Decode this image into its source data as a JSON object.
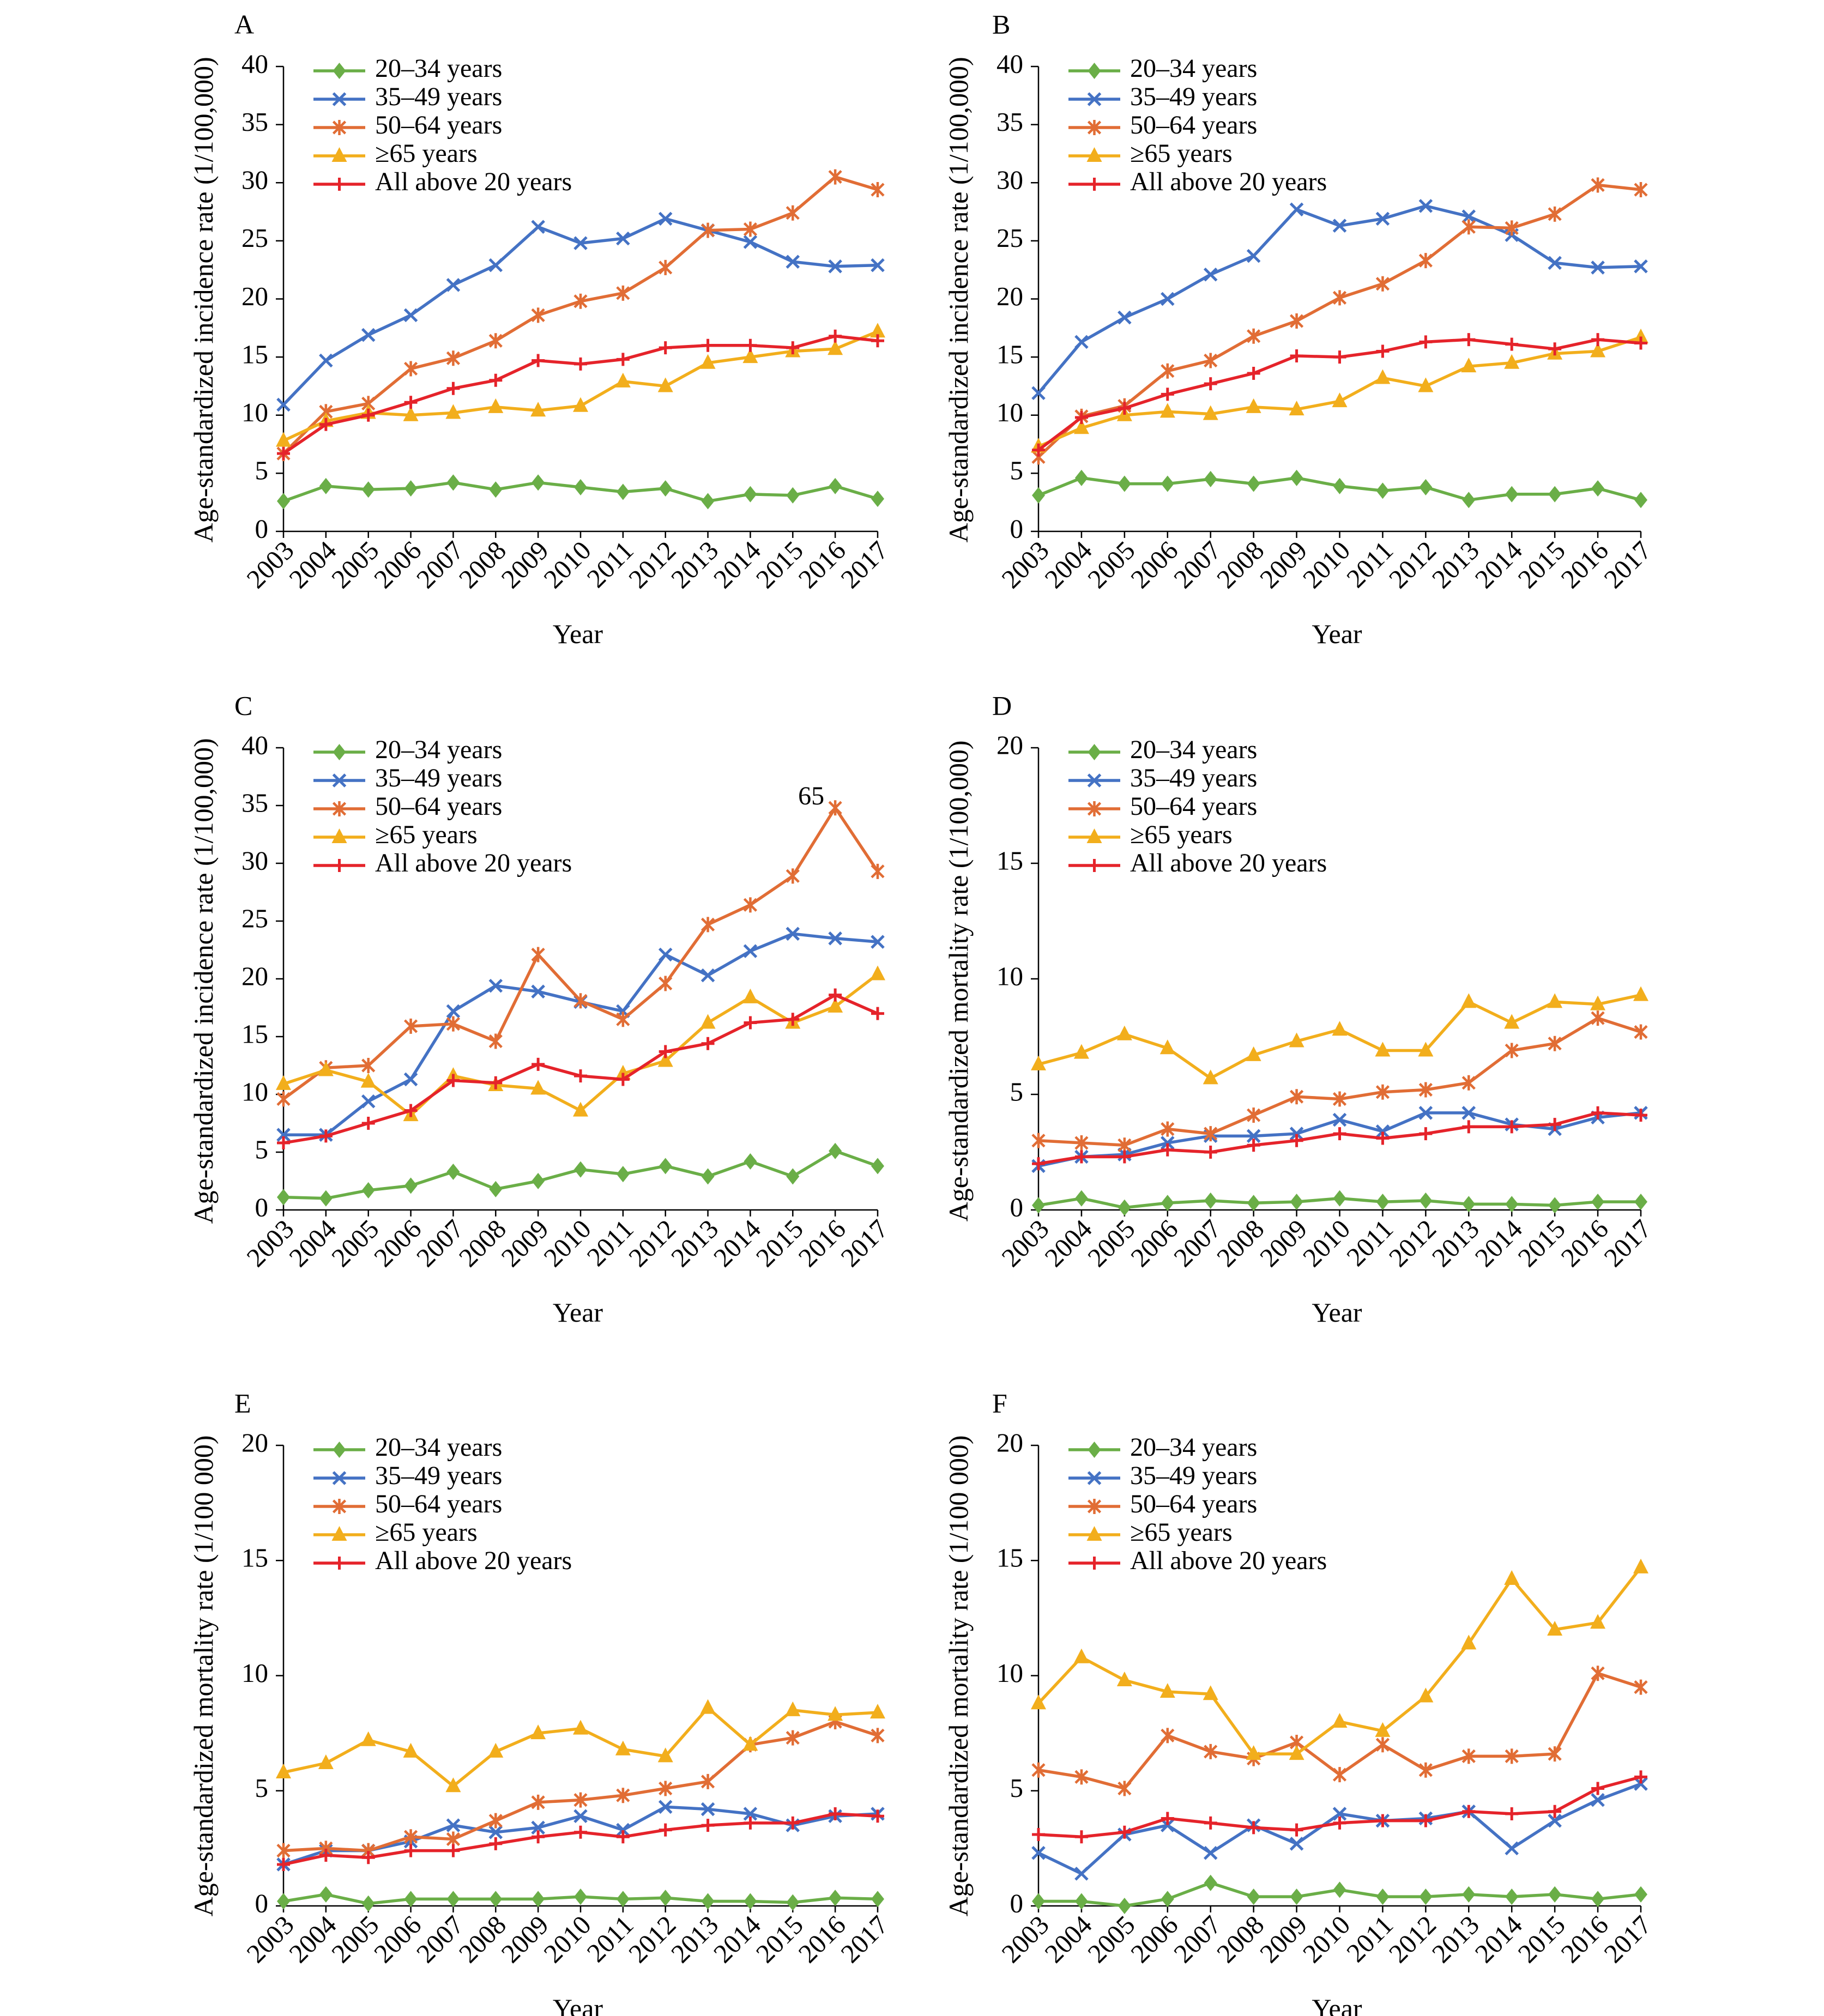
{
  "figure": {
    "series_styles": [
      {
        "name": "20–34 years",
        "color": "#6AAE47",
        "marker": "diamond"
      },
      {
        "name": "35–49 years",
        "color": "#4472C4",
        "marker": "x"
      },
      {
        "name": "50–64 years",
        "color": "#E16D35",
        "marker": "star"
      },
      {
        "name": "≥65 years",
        "color": "#F2AE1C",
        "marker": "triangle"
      },
      {
        "name": "All above 20 years",
        "color": "#E5232A",
        "marker": "plus"
      }
    ]
  },
  "chart_data": [
    {
      "panel": "A",
      "type": "line",
      "xlabel": "Year",
      "ylabel": "Age-standardized incidence rate (1/100,000)",
      "ylim": [
        0,
        40
      ],
      "yticks": [
        0,
        5,
        10,
        15,
        20,
        25,
        30,
        35,
        40
      ],
      "legend": "top-left",
      "grid": false,
      "x": [
        "2003",
        "2004",
        "2005",
        "2006",
        "2007",
        "2008",
        "2009",
        "2010",
        "2011",
        "2012",
        "2013",
        "2014",
        "2015",
        "2016",
        "2017"
      ],
      "series": [
        {
          "name": "20–34 years",
          "values": [
            2.6,
            3.9,
            3.6,
            3.7,
            4.2,
            3.6,
            4.2,
            3.8,
            3.4,
            3.7,
            2.6,
            3.2,
            3.1,
            3.9,
            2.8
          ]
        },
        {
          "name": "35–49 years",
          "values": [
            10.9,
            14.7,
            16.9,
            18.6,
            21.2,
            22.9,
            26.2,
            24.8,
            25.2,
            26.9,
            25.9,
            24.9,
            23.2,
            22.8,
            22.9
          ]
        },
        {
          "name": "50–64 years",
          "values": [
            6.7,
            10.3,
            11.0,
            14.0,
            14.9,
            16.4,
            18.6,
            19.8,
            20.5,
            22.7,
            25.9,
            26.0,
            27.4,
            30.5,
            29.4
          ]
        },
        {
          "name": "≥65 years",
          "values": [
            7.8,
            9.5,
            10.2,
            10.0,
            10.2,
            10.7,
            10.4,
            10.8,
            12.9,
            12.5,
            14.5,
            15.0,
            15.5,
            15.7,
            17.2
          ]
        },
        {
          "name": "All above 20 years",
          "values": [
            6.7,
            9.2,
            10.0,
            11.1,
            12.3,
            13.0,
            14.7,
            14.4,
            14.8,
            15.8,
            16.0,
            16.0,
            15.8,
            16.8,
            16.4
          ]
        }
      ]
    },
    {
      "panel": "B",
      "type": "line",
      "xlabel": "Year",
      "ylabel": "Age-standardized incidence rate (1/100,000)",
      "ylim": [
        0,
        40
      ],
      "yticks": [
        0,
        5,
        10,
        15,
        20,
        25,
        30,
        35,
        40
      ],
      "legend": "top-left",
      "grid": false,
      "x": [
        "2003",
        "2004",
        "2005",
        "2006",
        "2007",
        "2008",
        "2009",
        "2010",
        "2011",
        "2012",
        "2013",
        "2014",
        "2015",
        "2016",
        "2017"
      ],
      "series": [
        {
          "name": "20–34 years",
          "values": [
            3.1,
            4.6,
            4.1,
            4.1,
            4.5,
            4.1,
            4.6,
            3.9,
            3.5,
            3.8,
            2.7,
            3.2,
            3.2,
            3.7,
            2.7
          ]
        },
        {
          "name": "35–49 years",
          "values": [
            11.9,
            16.3,
            18.4,
            20.0,
            22.1,
            23.7,
            27.7,
            26.3,
            26.9,
            28.0,
            27.1,
            25.5,
            23.1,
            22.7,
            22.8
          ]
        },
        {
          "name": "50–64 years",
          "values": [
            6.4,
            9.9,
            10.8,
            13.8,
            14.7,
            16.8,
            18.1,
            20.1,
            21.3,
            23.3,
            26.2,
            26.1,
            27.3,
            29.8,
            29.4
          ]
        },
        {
          "name": "≥65 years",
          "values": [
            7.3,
            8.9,
            10.0,
            10.3,
            10.1,
            10.7,
            10.5,
            11.2,
            13.2,
            12.5,
            14.2,
            14.5,
            15.3,
            15.5,
            16.7
          ]
        },
        {
          "name": "All above 20 years",
          "values": [
            7.0,
            9.8,
            10.6,
            11.8,
            12.7,
            13.6,
            15.1,
            15.0,
            15.5,
            16.3,
            16.5,
            16.1,
            15.7,
            16.5,
            16.2
          ]
        }
      ]
    },
    {
      "panel": "C",
      "type": "line",
      "xlabel": "Year",
      "ylabel": "Age-standardized incidence rate (1/100,000)",
      "ylim": [
        0,
        40
      ],
      "yticks": [
        0,
        5,
        10,
        15,
        20,
        25,
        30,
        35,
        40
      ],
      "legend": "top-left",
      "grid": false,
      "annotations": [
        {
          "text": "65",
          "series": "50–64 years",
          "x": "2016"
        }
      ],
      "x": [
        "2003",
        "2004",
        "2005",
        "2006",
        "2007",
        "2008",
        "2009",
        "2010",
        "2011",
        "2012",
        "2013",
        "2014",
        "2015",
        "2016",
        "2017"
      ],
      "series": [
        {
          "name": "20–34 years",
          "values": [
            1.1,
            1.0,
            1.7,
            2.1,
            3.3,
            1.8,
            2.5,
            3.5,
            3.1,
            3.8,
            2.9,
            4.2,
            2.9,
            5.1,
            3.8
          ]
        },
        {
          "name": "35–49 years",
          "values": [
            6.5,
            6.5,
            9.4,
            11.3,
            17.2,
            19.4,
            18.9,
            18.0,
            17.2,
            22.1,
            20.3,
            22.4,
            23.9,
            23.5,
            23.2
          ]
        },
        {
          "name": "50–64 years",
          "values": [
            9.6,
            12.3,
            12.5,
            15.9,
            16.1,
            14.6,
            22.1,
            18.1,
            16.5,
            19.6,
            24.7,
            26.4,
            28.9,
            34.8,
            29.3
          ]
        },
        {
          "name": "≥65 years",
          "values": [
            10.9,
            12.1,
            11.1,
            8.2,
            11.6,
            10.8,
            10.5,
            8.6,
            11.8,
            12.9,
            16.2,
            18.4,
            16.2,
            17.6,
            20.4
          ]
        },
        {
          "name": "All above 20 years",
          "values": [
            5.8,
            6.4,
            7.5,
            8.6,
            11.2,
            11.0,
            12.6,
            11.6,
            11.3,
            13.7,
            14.4,
            16.2,
            16.5,
            18.6,
            17.0
          ]
        }
      ]
    },
    {
      "panel": "D",
      "type": "line",
      "xlabel": "Year",
      "ylabel": "Age-standardized mortality rate (1/100,000)",
      "ylim": [
        0,
        20
      ],
      "yticks": [
        0,
        5,
        10,
        15,
        20
      ],
      "legend": "top-left",
      "grid": false,
      "x": [
        "2003",
        "2004",
        "2005",
        "2006",
        "2007",
        "2008",
        "2009",
        "2010",
        "2011",
        "2012",
        "2013",
        "2014",
        "2015",
        "2016",
        "2017"
      ],
      "series": [
        {
          "name": "20–34 years",
          "values": [
            0.2,
            0.5,
            0.1,
            0.3,
            0.4,
            0.3,
            0.35,
            0.5,
            0.35,
            0.4,
            0.25,
            0.25,
            0.2,
            0.35,
            0.35
          ]
        },
        {
          "name": "35–49 years",
          "values": [
            1.9,
            2.3,
            2.4,
            2.9,
            3.2,
            3.2,
            3.3,
            3.9,
            3.4,
            4.2,
            4.2,
            3.7,
            3.5,
            4.0,
            4.2
          ]
        },
        {
          "name": "50–64 years",
          "values": [
            3.0,
            2.9,
            2.8,
            3.5,
            3.3,
            4.1,
            4.9,
            4.8,
            5.1,
            5.2,
            5.5,
            6.9,
            7.2,
            8.3,
            7.7
          ]
        },
        {
          "name": "≥65 years",
          "values": [
            6.3,
            6.8,
            7.6,
            7.0,
            5.7,
            6.7,
            7.3,
            7.8,
            6.9,
            6.9,
            9.0,
            8.1,
            9.0,
            8.9,
            9.3
          ]
        },
        {
          "name": "All above 20 years",
          "values": [
            2.0,
            2.3,
            2.3,
            2.6,
            2.5,
            2.8,
            3.0,
            3.3,
            3.1,
            3.3,
            3.6,
            3.6,
            3.7,
            4.2,
            4.1
          ]
        }
      ]
    },
    {
      "panel": "E",
      "type": "line",
      "xlabel": "Year",
      "ylabel": "Age-standardized mortality rate (1/100 000)",
      "ylim": [
        0,
        20
      ],
      "yticks": [
        0,
        5,
        10,
        15,
        20
      ],
      "legend": "top-left",
      "grid": false,
      "x": [
        "2003",
        "2004",
        "2005",
        "2006",
        "2007",
        "2008",
        "2009",
        "2010",
        "2011",
        "2012",
        "2013",
        "2014",
        "2015",
        "2016",
        "2017"
      ],
      "series": [
        {
          "name": "20–34 years",
          "values": [
            0.2,
            0.5,
            0.1,
            0.3,
            0.3,
            0.3,
            0.3,
            0.4,
            0.3,
            0.35,
            0.2,
            0.2,
            0.15,
            0.35,
            0.3
          ]
        },
        {
          "name": "35–49 years",
          "values": [
            1.8,
            2.4,
            2.4,
            2.8,
            3.5,
            3.2,
            3.4,
            3.9,
            3.3,
            4.3,
            4.2,
            4.0,
            3.5,
            3.9,
            4.0
          ]
        },
        {
          "name": "50–64 years",
          "values": [
            2.4,
            2.5,
            2.4,
            3.0,
            2.9,
            3.7,
            4.5,
            4.6,
            4.8,
            5.1,
            5.4,
            7.0,
            7.3,
            8.0,
            7.4
          ]
        },
        {
          "name": "≥65 years",
          "values": [
            5.8,
            6.2,
            7.2,
            6.7,
            5.2,
            6.7,
            7.5,
            7.7,
            6.8,
            6.5,
            8.6,
            7.0,
            8.5,
            8.3,
            8.4
          ]
        },
        {
          "name": "All above 20 years",
          "values": [
            1.8,
            2.2,
            2.1,
            2.4,
            2.4,
            2.7,
            3.0,
            3.2,
            3.0,
            3.3,
            3.5,
            3.6,
            3.6,
            4.0,
            3.9
          ]
        }
      ]
    },
    {
      "panel": "F",
      "type": "line",
      "xlabel": "Year",
      "ylabel": "Age-standardized mortality rate (1/100 000)",
      "ylim": [
        0,
        20
      ],
      "yticks": [
        0,
        5,
        10,
        15,
        20
      ],
      "legend": "top-left",
      "grid": false,
      "x": [
        "2003",
        "2004",
        "2005",
        "2006",
        "2007",
        "2008",
        "2009",
        "2010",
        "2011",
        "2012",
        "2013",
        "2014",
        "2015",
        "2016",
        "2017"
      ],
      "series": [
        {
          "name": "20–34 years",
          "values": [
            0.2,
            0.2,
            0.0,
            0.3,
            1.0,
            0.4,
            0.4,
            0.7,
            0.4,
            0.4,
            0.5,
            0.4,
            0.5,
            0.3,
            0.5
          ]
        },
        {
          "name": "35–49 years",
          "values": [
            2.3,
            1.4,
            3.1,
            3.5,
            2.3,
            3.5,
            2.7,
            4.0,
            3.7,
            3.8,
            4.1,
            2.5,
            3.7,
            4.6,
            5.3
          ]
        },
        {
          "name": "50–64 years",
          "values": [
            5.9,
            5.6,
            5.1,
            7.4,
            6.7,
            6.4,
            7.1,
            5.7,
            7.0,
            5.9,
            6.5,
            6.5,
            6.6,
            10.1,
            9.5
          ]
        },
        {
          "name": "≥65 years",
          "values": [
            8.8,
            10.8,
            9.8,
            9.3,
            9.2,
            6.6,
            6.6,
            8.0,
            7.6,
            9.1,
            11.4,
            14.2,
            12.0,
            12.3,
            14.7
          ]
        },
        {
          "name": "All above 20 years",
          "values": [
            3.1,
            3.0,
            3.2,
            3.8,
            3.6,
            3.4,
            3.3,
            3.6,
            3.7,
            3.7,
            4.1,
            4.0,
            4.1,
            5.1,
            5.6
          ]
        }
      ]
    }
  ]
}
